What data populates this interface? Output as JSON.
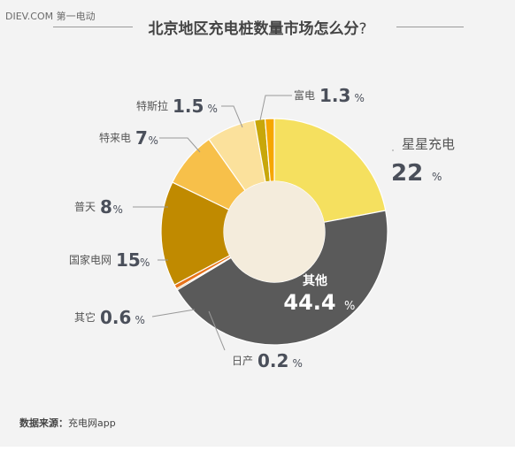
{
  "header": {
    "source_tag": "DIEV.COM 第一电动"
  },
  "chart_data": {
    "type": "pie",
    "title": "北京地区充电桩数量市场怎么分",
    "title_suffix": "?",
    "donut": true,
    "center_color": "#f4ecdc",
    "slices": [
      {
        "label": "星星充电",
        "value": 22,
        "display": "22",
        "color": "#f5e05f"
      },
      {
        "label": "其他",
        "value": 44.4,
        "display": "44.4",
        "color": "#5a5a5a"
      },
      {
        "label": "日产",
        "value": 0.2,
        "display": "0.2",
        "color": "#c07a10"
      },
      {
        "label": "其它",
        "value": 0.6,
        "display": "0.6",
        "color": "#e8731a"
      },
      {
        "label": "国家电网",
        "value": 15,
        "display": "15",
        "color": "#c08a00"
      },
      {
        "label": "普天",
        "value": 8,
        "display": "8",
        "color": "#f7c04a"
      },
      {
        "label": "特来电",
        "value": 7,
        "display": "7",
        "color": "#fbe19c"
      },
      {
        "label": "特斯拉",
        "value": 1.5,
        "display": "1.5",
        "color": "#c8a70a"
      },
      {
        "label": "富电",
        "value": 1.3,
        "display": "1.3",
        "color": "#f6a600"
      }
    ],
    "unit": "%"
  },
  "footer": {
    "source_label": "数据来源：",
    "source_value": "充电网app"
  }
}
